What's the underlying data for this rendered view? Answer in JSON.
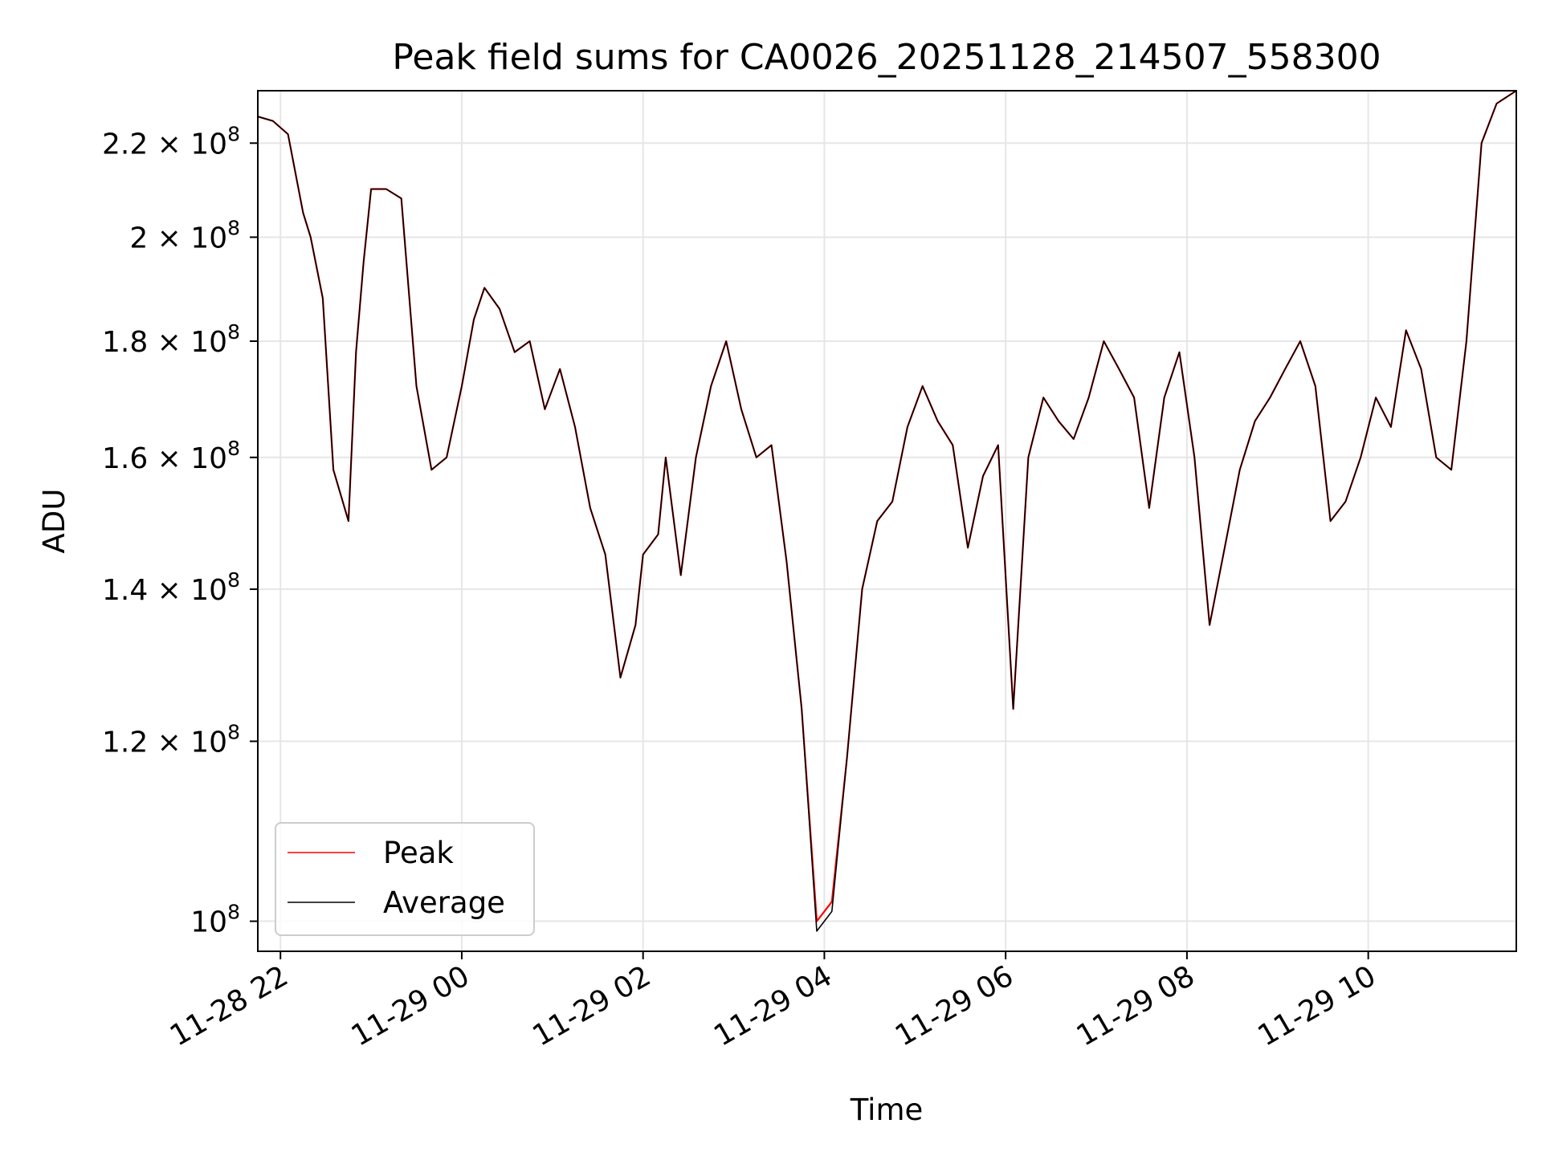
{
  "chart_data": {
    "type": "line",
    "title": "Peak field sums for CA0026_20251128_214507_558300",
    "xlabel": "Time",
    "ylabel": "ADU",
    "yscale": "log",
    "xlim": [
      "2025-11-28 21:45",
      "2025-11-29 11:38"
    ],
    "ylim": [
      97000000,
      232000000
    ],
    "grid": true,
    "legend_position": "lower-left",
    "x_ticks": [
      "11-28 22",
      "11-29 00",
      "11-29 02",
      "11-29 04",
      "11-29 06",
      "11-29 08",
      "11-29 10"
    ],
    "y_ticks": [
      {
        "value": 100000000,
        "mantissa": "",
        "exponent": "8"
      },
      {
        "value": 120000000,
        "mantissa": "1.2",
        "exponent": "8"
      },
      {
        "value": 140000000,
        "mantissa": "1.4",
        "exponent": "8"
      },
      {
        "value": 160000000,
        "mantissa": "1.6",
        "exponent": "8"
      },
      {
        "value": 180000000,
        "mantissa": "1.8",
        "exponent": "8"
      },
      {
        "value": 200000000,
        "mantissa": "2",
        "exponent": "8"
      },
      {
        "value": 220000000,
        "mantissa": "2.2",
        "exponent": "8"
      }
    ],
    "x": [
      "2025-11-28 21:45",
      "2025-11-28 21:55",
      "2025-11-28 22:05",
      "2025-11-28 22:15",
      "2025-11-28 22:20",
      "2025-11-28 22:28",
      "2025-11-28 22:35",
      "2025-11-28 22:45",
      "2025-11-28 22:50",
      "2025-11-28 22:55",
      "2025-11-28 23:00",
      "2025-11-28 23:10",
      "2025-11-28 23:20",
      "2025-11-28 23:30",
      "2025-11-28 23:40",
      "2025-11-28 23:50",
      "2025-11-29 00:00",
      "2025-11-29 00:08",
      "2025-11-29 00:15",
      "2025-11-29 00:25",
      "2025-11-29 00:35",
      "2025-11-29 00:45",
      "2025-11-29 00:55",
      "2025-11-29 01:05",
      "2025-11-29 01:15",
      "2025-11-29 01:25",
      "2025-11-29 01:35",
      "2025-11-29 01:45",
      "2025-11-29 01:55",
      "2025-11-29 02:00",
      "2025-11-29 02:10",
      "2025-11-29 02:15",
      "2025-11-29 02:25",
      "2025-11-29 02:35",
      "2025-11-29 02:45",
      "2025-11-29 02:55",
      "2025-11-29 03:05",
      "2025-11-29 03:15",
      "2025-11-29 03:25",
      "2025-11-29 03:35",
      "2025-11-29 03:45",
      "2025-11-29 03:55",
      "2025-11-29 04:05",
      "2025-11-29 04:15",
      "2025-11-29 04:25",
      "2025-11-29 04:35",
      "2025-11-29 04:45",
      "2025-11-29 04:55",
      "2025-11-29 05:05",
      "2025-11-29 05:15",
      "2025-11-29 05:25",
      "2025-11-29 05:35",
      "2025-11-29 05:45",
      "2025-11-29 05:55",
      "2025-11-29 06:05",
      "2025-11-29 06:15",
      "2025-11-29 06:25",
      "2025-11-29 06:35",
      "2025-11-29 06:45",
      "2025-11-29 06:55",
      "2025-11-29 07:05",
      "2025-11-29 07:15",
      "2025-11-29 07:25",
      "2025-11-29 07:35",
      "2025-11-29 07:45",
      "2025-11-29 07:55",
      "2025-11-29 08:05",
      "2025-11-29 08:15",
      "2025-11-29 08:25",
      "2025-11-29 08:35",
      "2025-11-29 08:45",
      "2025-11-29 08:55",
      "2025-11-29 09:05",
      "2025-11-29 09:15",
      "2025-11-29 09:25",
      "2025-11-29 09:35",
      "2025-11-29 09:45",
      "2025-11-29 09:55",
      "2025-11-29 10:05",
      "2025-11-29 10:15",
      "2025-11-29 10:25",
      "2025-11-29 10:35",
      "2025-11-29 10:45",
      "2025-11-29 10:55",
      "2025-11-29 11:05",
      "2025-11-29 11:15",
      "2025-11-29 11:25",
      "2025-11-29 11:38"
    ],
    "series": [
      {
        "name": "Peak",
        "color": "#ff0000",
        "values": [
          226,
          225,
          222,
          205,
          200,
          188,
          158,
          150,
          178,
          195,
          210,
          210,
          208,
          172,
          158,
          160,
          172,
          184,
          190,
          186,
          178,
          180,
          168,
          175,
          165,
          152,
          145,
          128,
          135,
          145,
          148,
          160,
          142,
          160,
          172,
          180,
          168,
          160,
          162,
          144,
          124,
          100,
          102,
          118,
          140,
          150,
          153,
          165,
          172,
          166,
          162,
          146,
          157,
          162,
          124,
          160,
          170,
          166,
          163,
          170,
          180,
          175,
          170,
          152,
          170,
          178,
          160,
          135,
          146,
          158,
          166,
          170,
          175,
          180,
          172,
          150,
          153,
          160,
          170,
          165,
          182,
          175,
          160,
          158,
          180,
          220,
          229,
          232
        ]
      },
      {
        "name": "Average",
        "color": "#000000",
        "values": [
          226,
          225,
          222,
          205,
          200,
          188,
          158,
          150,
          178,
          195,
          210,
          210,
          208,
          172,
          158,
          160,
          172,
          184,
          190,
          186,
          178,
          180,
          168,
          175,
          165,
          152,
          145,
          128,
          135,
          145,
          148,
          160,
          142,
          160,
          172,
          180,
          168,
          160,
          162,
          144,
          124,
          99,
          101,
          118,
          140,
          150,
          153,
          165,
          172,
          166,
          162,
          146,
          157,
          162,
          124,
          160,
          170,
          166,
          163,
          170,
          180,
          175,
          170,
          152,
          170,
          178,
          160,
          135,
          146,
          158,
          166,
          170,
          175,
          180,
          172,
          150,
          153,
          160,
          170,
          165,
          182,
          175,
          160,
          158,
          180,
          220,
          229,
          232
        ]
      }
    ],
    "value_unit_multiplier": 1000000
  }
}
